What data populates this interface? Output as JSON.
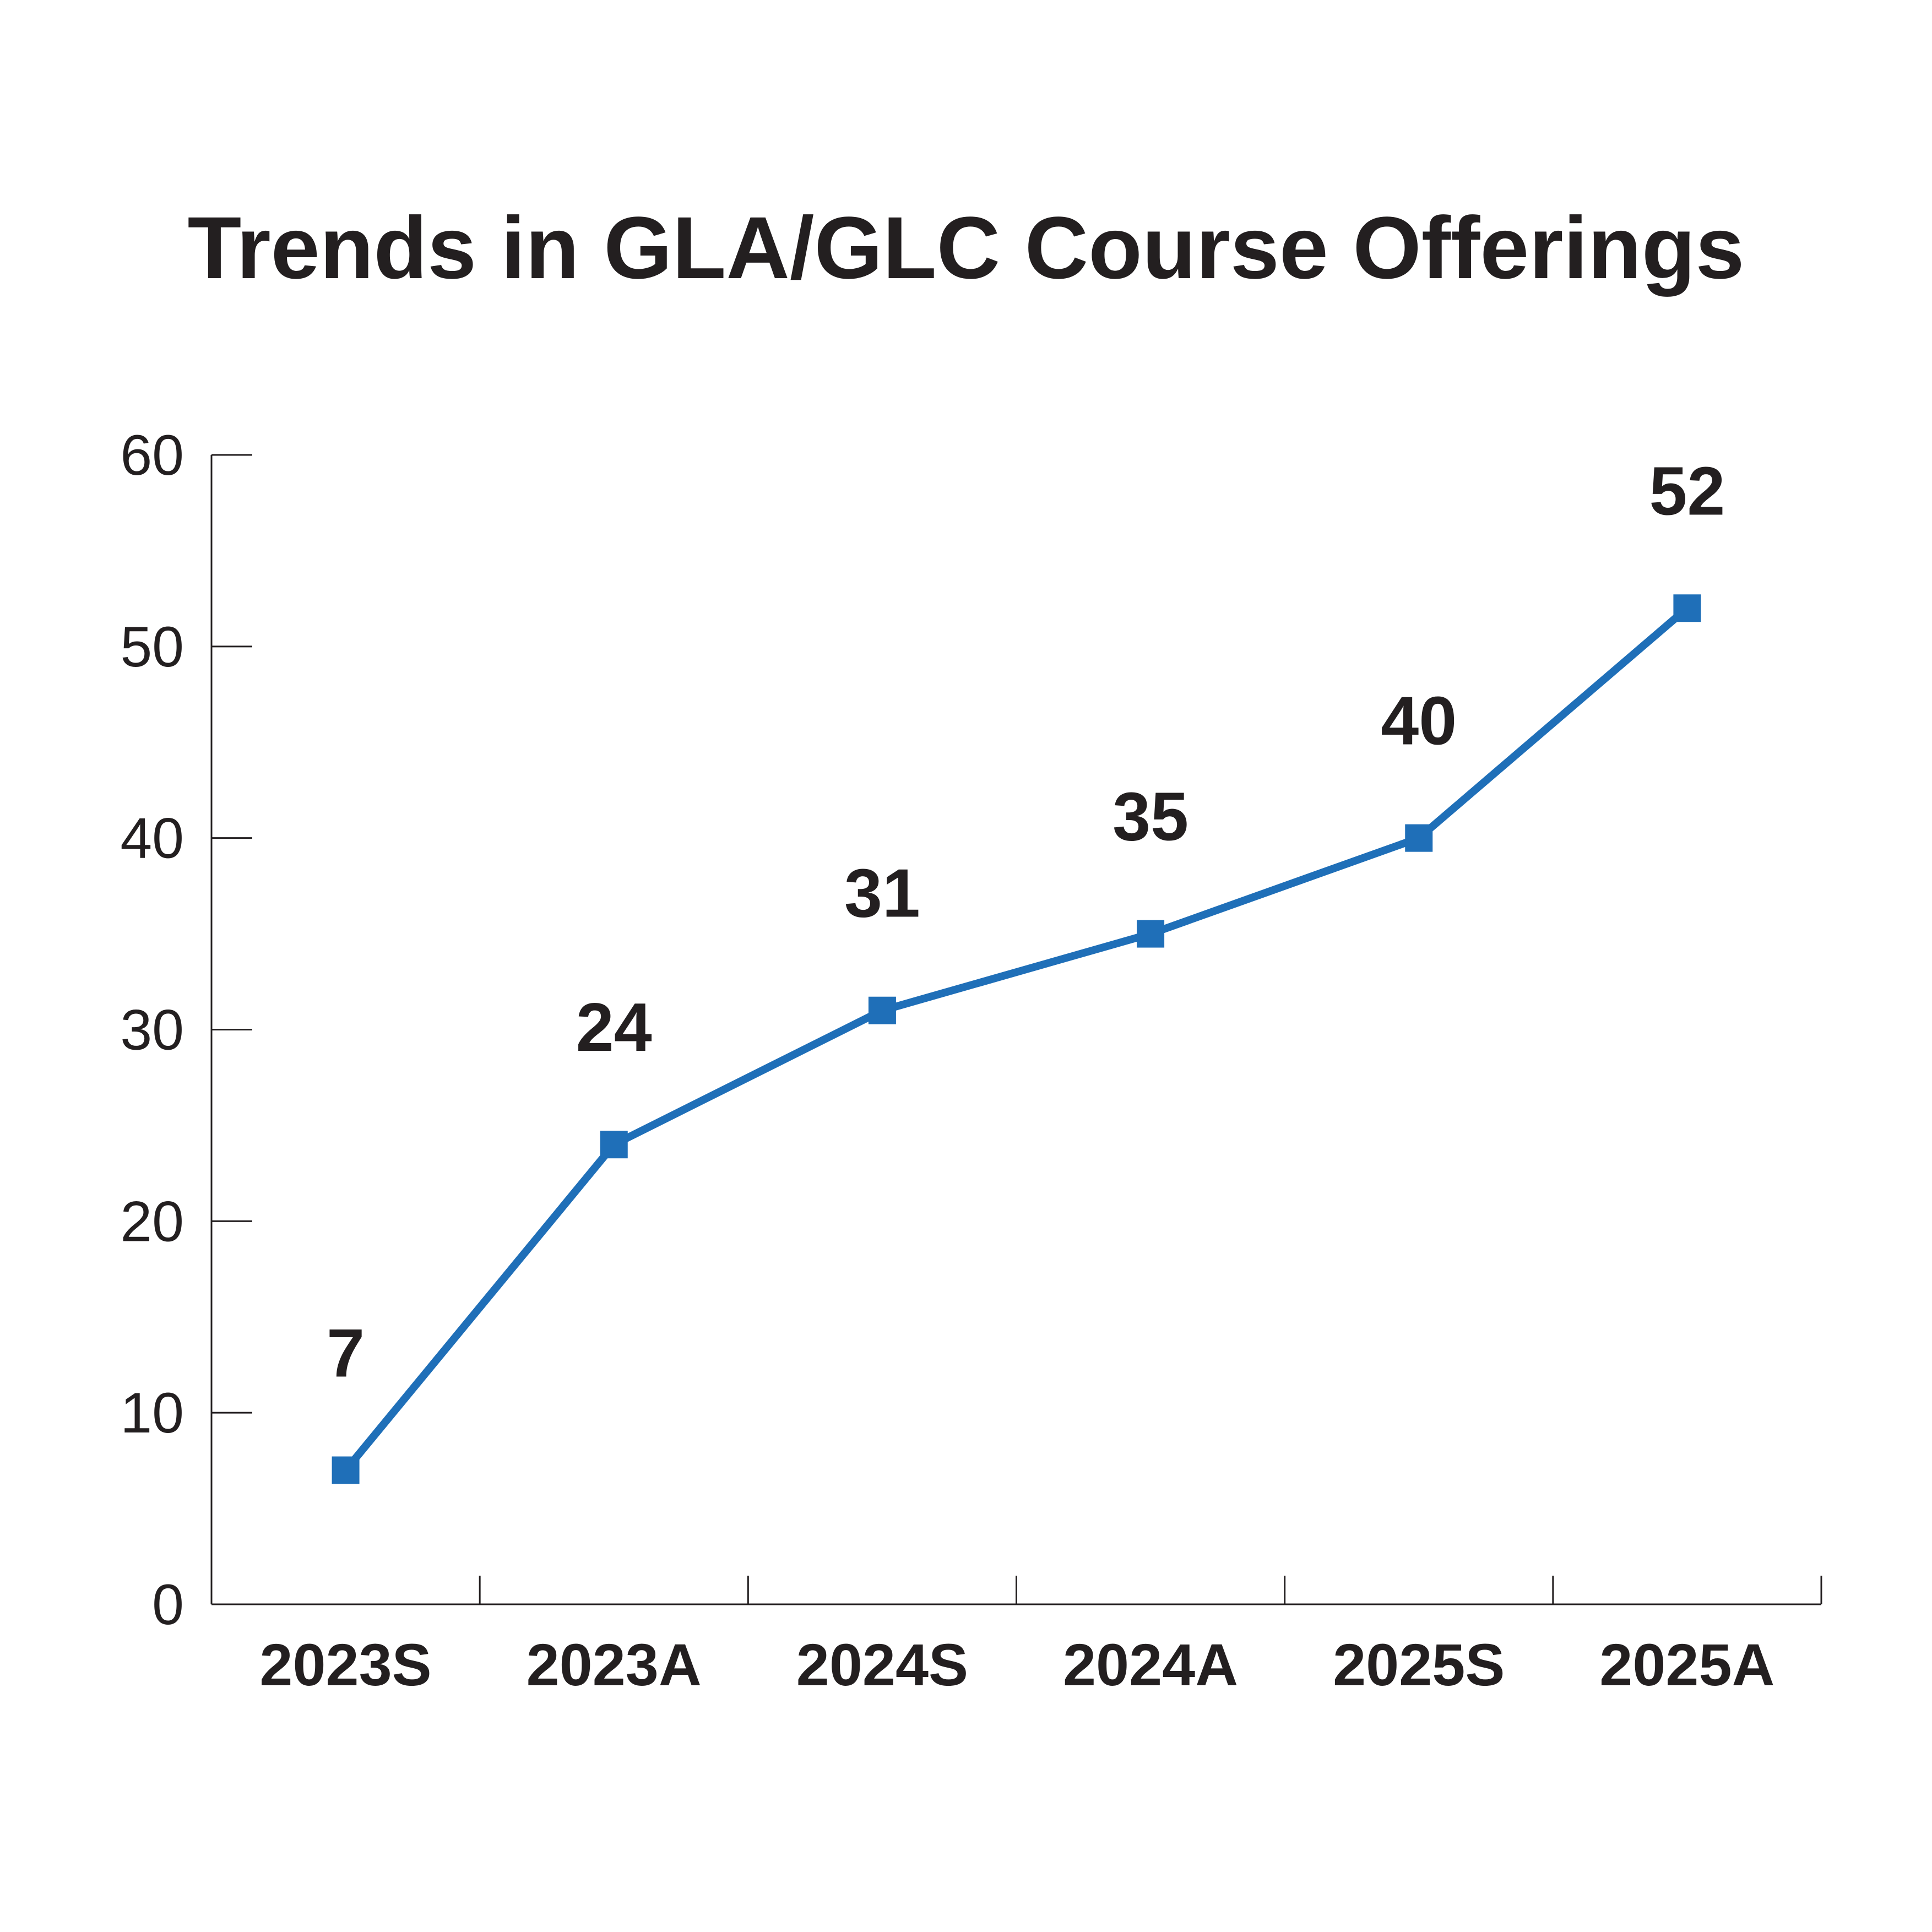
{
  "chart_data": {
    "type": "line",
    "title": "Trends in GLA/GLC Course Offerings",
    "xlabel": "",
    "ylabel": "",
    "categories": [
      "2023S",
      "2023A",
      "2024S",
      "2024A",
      "2025S",
      "2025A"
    ],
    "series": [
      {
        "values": [
          7,
          24,
          31,
          35,
          40,
          52
        ]
      }
    ],
    "data_labels": [
      "7",
      "24",
      "31",
      "35",
      "40",
      "52"
    ],
    "ylim": [
      0,
      60
    ],
    "yticks": [
      0,
      10,
      20,
      30,
      40,
      50,
      60
    ],
    "ytick_labels": [
      "0",
      "10",
      "20",
      "30",
      "40",
      "50",
      "60"
    ],
    "grid": false,
    "legend": "none",
    "marker": "square",
    "line_color": "#1f6fb8",
    "text_color": "#231f20"
  }
}
